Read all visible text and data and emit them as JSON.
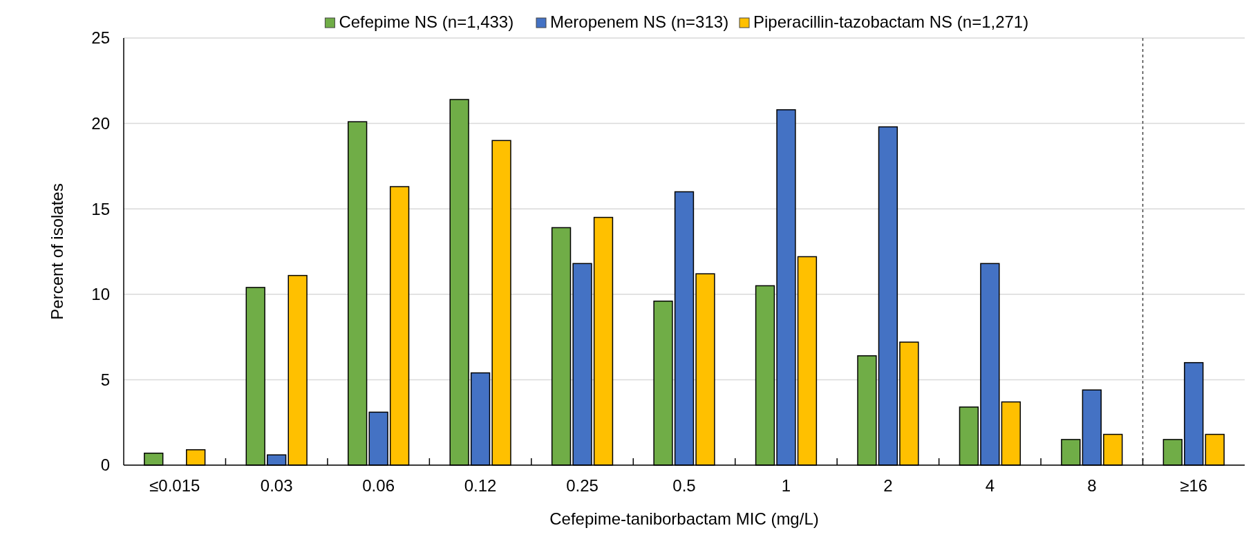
{
  "chart_data": {
    "type": "bar",
    "xlabel": "Cefepime-taniborbactam MIC (mg/L)",
    "ylabel": "Percent of isolates",
    "categories": [
      "≤0.015",
      "0.03",
      "0.06",
      "0.12",
      "0.25",
      "0.5",
      "1",
      "2",
      "4",
      "8",
      "≥16"
    ],
    "series": [
      {
        "name": "Cefepime NS (n=1,433)",
        "color": "#70ad47",
        "values": [
          0.7,
          10.4,
          20.1,
          21.4,
          13.9,
          9.6,
          10.5,
          6.4,
          3.4,
          1.5,
          1.5
        ]
      },
      {
        "name": "Meropenem NS (n=313)",
        "color": "#4472c4",
        "values": [
          0,
          0.6,
          3.1,
          5.4,
          11.8,
          16.0,
          20.8,
          19.8,
          11.8,
          4.4,
          6.0
        ]
      },
      {
        "name": "Piperacillin-tazobactam NS (n=1,271)",
        "color": "#ffc000",
        "values": [
          0.9,
          11.1,
          16.3,
          19.0,
          14.5,
          11.2,
          12.2,
          7.2,
          3.7,
          1.8,
          1.8
        ]
      }
    ],
    "ylim": [
      0,
      25
    ],
    "yticks": [
      0,
      5,
      10,
      15,
      20,
      25
    ],
    "grid": "y",
    "legend": "top",
    "ref_lines": [
      {
        "axis": "x",
        "value": "≥16",
        "color": "#404040",
        "line_style": "dashed"
      }
    ]
  }
}
